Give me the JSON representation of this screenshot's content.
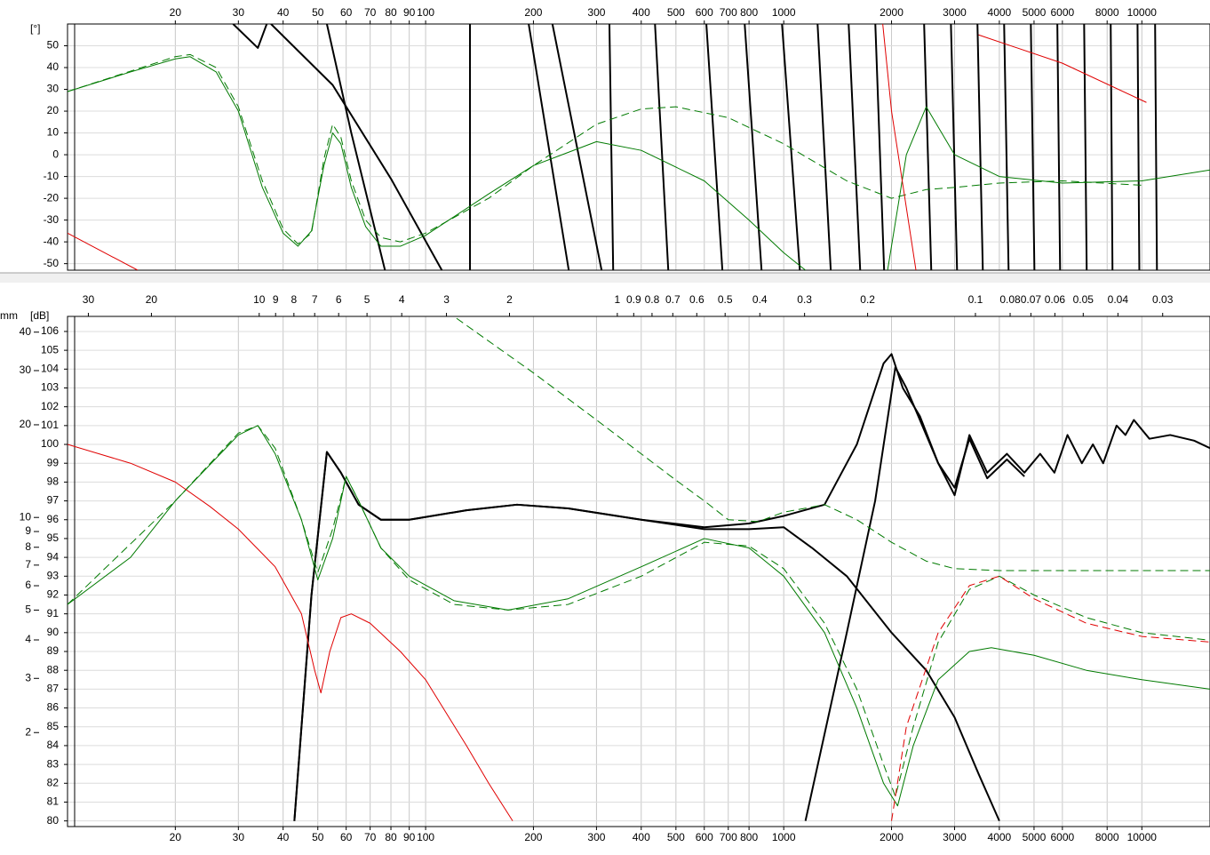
{
  "chart_data": [
    {
      "type": "line",
      "y_label": "[°]",
      "x_log": true,
      "x_axis_position": "top",
      "grid": true,
      "xlim": [
        10,
        15500
      ],
      "ylim": [
        -53,
        60
      ],
      "xticks": [
        20,
        30,
        40,
        50,
        60,
        70,
        80,
        90,
        100,
        200,
        300,
        400,
        500,
        600,
        700,
        800,
        1000,
        2000,
        3000,
        4000,
        5000,
        6000,
        8000,
        10000
      ],
      "yticks": [
        50,
        40,
        30,
        20,
        10,
        0,
        -10,
        -20,
        -30,
        -40,
        -50
      ],
      "series": [
        {
          "color": "#000000",
          "dashed": false,
          "x": [
            29,
            34,
            36,
            null,
            37,
            55,
            80,
            111,
            null,
            53,
            62,
            77,
            null,
            133,
            133,
            null,
            194,
            251,
            null,
            226,
            310,
            null,
            326,
            334,
            null,
            437,
            476,
            null,
            608,
            674,
            null,
            778,
            867,
            null,
            989,
            1109,
            null,
            1243,
            1353,
            null,
            1518,
            1635,
            null,
            1802,
            1907,
            null,
            2466,
            2582,
            null,
            2930,
            3048,
            null,
            3475,
            3597,
            null,
            4125,
            4245,
            null,
            4898,
            5012,
            null,
            5808,
            5912,
            null,
            6900,
            7015,
            null,
            8185,
            8280,
            null,
            9726,
            9840,
            null,
            10890,
            11020
          ],
          "values": [
            60,
            49,
            60,
            null,
            60,
            32,
            -11,
            -53,
            null,
            60,
            10,
            -53,
            null,
            60,
            -53,
            null,
            60,
            -53,
            null,
            60,
            -53,
            null,
            60,
            -53,
            null,
            60,
            -53,
            null,
            60,
            -53,
            null,
            60,
            -53,
            null,
            60,
            -53,
            null,
            60,
            -53,
            null,
            60,
            -53,
            null,
            60,
            -53,
            null,
            60,
            -53,
            null,
            60,
            -53,
            null,
            60,
            -53,
            null,
            60,
            -53,
            null,
            60,
            -53,
            null,
            60,
            -53,
            null,
            60,
            -53,
            null,
            60,
            -53,
            null,
            60,
            -53,
            null,
            60,
            -53
          ]
        },
        {
          "color": "#007a00",
          "dashed": false,
          "x": [
            10,
            15,
            20,
            22,
            26,
            30,
            35,
            40,
            44,
            48,
            52,
            55,
            58,
            62,
            68,
            75,
            85,
            100,
            150,
            200,
            300,
            400,
            600,
            800,
            1000,
            1150,
            null,
            1950,
            2200,
            2500,
            3000,
            4000,
            6000,
            10000,
            15500
          ],
          "values": [
            29,
            38,
            44,
            45,
            38,
            20,
            -15,
            -36,
            -42,
            -35,
            -5,
            10,
            5,
            -15,
            -33,
            -42,
            -42,
            -37,
            -18,
            -5,
            6,
            2,
            -12,
            -30,
            -45,
            -53,
            null,
            -53,
            0,
            22,
            0,
            -10,
            -13,
            -12,
            -7
          ]
        },
        {
          "color": "#007a00",
          "dashed": true,
          "x": [
            10,
            20,
            22,
            26,
            30,
            35,
            40,
            44,
            48,
            52,
            55,
            58,
            62,
            68,
            75,
            85,
            100,
            150,
            200,
            300,
            400,
            500,
            700,
            1000,
            1500,
            2000,
            2500,
            3000,
            4000,
            6000,
            10000
          ],
          "values": [
            29,
            45,
            46,
            40,
            22,
            -12,
            -34,
            -41,
            -36,
            -2,
            14,
            8,
            -12,
            -30,
            -38,
            -40,
            -36,
            -20,
            -5,
            14,
            21,
            22,
            17,
            5,
            -12,
            -20,
            -16,
            -15,
            -13,
            -12,
            -14
          ]
        },
        {
          "color": "#e00000",
          "dashed": false,
          "x": [
            10,
            15.7,
            null,
            1890,
            2000,
            2340,
            null,
            3500,
            6000,
            10300
          ],
          "values": [
            -36,
            -53,
            null,
            60,
            20,
            -53,
            null,
            55,
            42,
            24
          ]
        }
      ]
    },
    {
      "type": "line",
      "y_label": "[dB]",
      "y2_label": "mm",
      "x_log": true,
      "x_axis_position": "bottom",
      "y2_log": true,
      "grid": true,
      "xlim": [
        10,
        15500
      ],
      "ylim": [
        79.7,
        106.8
      ],
      "y2lim": [
        0.99,
        45
      ],
      "xticks": [
        20,
        30,
        40,
        50,
        60,
        70,
        80,
        90,
        100,
        200,
        300,
        400,
        500,
        600,
        700,
        800,
        1000,
        2000,
        3000,
        4000,
        5000,
        6000,
        8000,
        10000
      ],
      "x2ticks": [
        30,
        20,
        10,
        9,
        8,
        7,
        6,
        5,
        4,
        3,
        2,
        1,
        0.9,
        0.8,
        0.7,
        0.6,
        0.5,
        0.4,
        0.3,
        0.2,
        0.1,
        0.08,
        0.07,
        0.06,
        0.05,
        0.04,
        0.03
      ],
      "yticks": [
        80,
        81,
        82,
        83,
        84,
        85,
        86,
        87,
        88,
        89,
        90,
        91,
        92,
        93,
        94,
        95,
        96,
        97,
        98,
        99,
        100,
        101,
        102,
        103,
        104,
        105,
        106
      ],
      "y2ticks": [
        40,
        30,
        20,
        10,
        9,
        8,
        7,
        6,
        5,
        4,
        3,
        2
      ],
      "series": [
        {
          "color": "#000000",
          "dashed": false,
          "x": [
            43,
            48,
            53,
            58,
            65,
            75,
            90,
            130,
            180,
            250,
            400,
            600,
            800,
            1000,
            1200,
            1500,
            2000,
            2500,
            3000,
            3500,
            4000
          ],
          "values": [
            80,
            92,
            99.6,
            98.5,
            96.8,
            96,
            96,
            96.5,
            96.8,
            96.6,
            96,
            95.5,
            95.5,
            95.6,
            94.5,
            93,
            90,
            88,
            85.5,
            82.5,
            80
          ]
        },
        {
          "color": "#000000",
          "dashed": false,
          "x": [
            43,
            48,
            53,
            58,
            65,
            75,
            90,
            130,
            180,
            250,
            400,
            600,
            800,
            1000,
            1300,
            1600,
            1900,
            2000,
            2150,
            2400,
            2700,
            3000,
            3300,
            3700,
            4200,
            4700,
            5200,
            5700,
            6200,
            6800,
            7300,
            7800,
            8500,
            9000,
            9500,
            10500,
            12000,
            14000,
            15500
          ],
          "values": [
            80,
            92,
            99.6,
            98.5,
            96.8,
            96,
            96,
            96.5,
            96.8,
            96.6,
            96,
            95.6,
            95.8,
            96.2,
            96.8,
            100,
            104.3,
            104.8,
            103,
            101.5,
            99,
            97.3,
            100.5,
            98.5,
            99.5,
            98.5,
            99.5,
            98.5,
            100.5,
            99,
            100,
            99,
            101,
            100.5,
            101.3,
            100.3,
            100.5,
            100.2,
            99.8
          ]
        },
        {
          "color": "#000000",
          "dashed": false,
          "x": [
            1150,
            1500,
            1800,
            2050,
            2200,
            2700,
            3000,
            3300,
            3700,
            4200,
            4700
          ],
          "values": [
            80,
            90,
            97,
            104.1,
            103,
            99,
            97.7,
            100.3,
            98.2,
            99.2,
            98.3
          ]
        },
        {
          "color": "#007a00",
          "dashed": false,
          "x": [
            10,
            15,
            20,
            30,
            34,
            38,
            45,
            50,
            55,
            60,
            65,
            75,
            90,
            120,
            170,
            250,
            400,
            600,
            800,
            1000,
            1300,
            1600,
            1900,
            2080,
            2300,
            2700,
            3300,
            3800,
            5000,
            7000,
            10000,
            15500
          ],
          "values": [
            91.5,
            94,
            97,
            100.5,
            101,
            99.5,
            96,
            92.8,
            95,
            98.3,
            97,
            94.5,
            93,
            91.7,
            91.2,
            91.8,
            93.5,
            95,
            94.5,
            93,
            90,
            86,
            82,
            80.8,
            84,
            87.5,
            89,
            89.2,
            88.8,
            88,
            87.5,
            87
          ]
        },
        {
          "color": "#007a00",
          "dashed": true,
          "x": [
            122,
            200,
            300,
            400,
            500,
            600,
            700,
            850,
            1000,
            1300,
            1600,
            2000,
            2500,
            3000,
            4000,
            6000,
            15500
          ],
          "values": [
            106.7,
            103.8,
            101.3,
            99.5,
            98.1,
            97,
            96,
            95.9,
            96.4,
            96.8,
            96,
            94.8,
            93.8,
            93.4,
            93.3,
            93.3,
            93.3
          ]
        },
        {
          "color": "#007a00",
          "dashed": true,
          "x": [
            10,
            20,
            30,
            34,
            38,
            45,
            50,
            55,
            60,
            65,
            75,
            90,
            120,
            170,
            250,
            400,
            600,
            800,
            1000,
            1300,
            1600,
            1900,
            2050,
            2300,
            2700,
            3300,
            4000,
            5000,
            7000,
            10000,
            15500
          ],
          "values": [
            91.5,
            97,
            100.6,
            101,
            99.8,
            96,
            93.2,
            95.5,
            98.3,
            97,
            94.5,
            92.8,
            91.5,
            91.2,
            91.5,
            93,
            94.8,
            94.6,
            93.4,
            90.5,
            87,
            83,
            81.3,
            85,
            89.5,
            92.3,
            93,
            92,
            90.8,
            90,
            89.6
          ]
        },
        {
          "color": "#e00000",
          "dashed": true,
          "x": [
            2000,
            2200,
            2700,
            3300,
            4000,
            5000,
            7000,
            10000,
            15500
          ],
          "values": [
            80,
            85,
            90,
            92.5,
            93,
            91.8,
            90.5,
            89.8,
            89.5
          ]
        },
        {
          "color": "#e00000",
          "dashed": false,
          "x": [
            10,
            15,
            20,
            25,
            30,
            38,
            45,
            49,
            51,
            54,
            58,
            62,
            70,
            85,
            100,
            130,
            150,
            175
          ],
          "values": [
            100,
            99,
            98,
            96.7,
            95.5,
            93.5,
            91,
            88,
            86.8,
            89,
            90.8,
            91,
            90.5,
            89,
            87.5,
            84,
            82,
            80
          ]
        }
      ]
    }
  ]
}
